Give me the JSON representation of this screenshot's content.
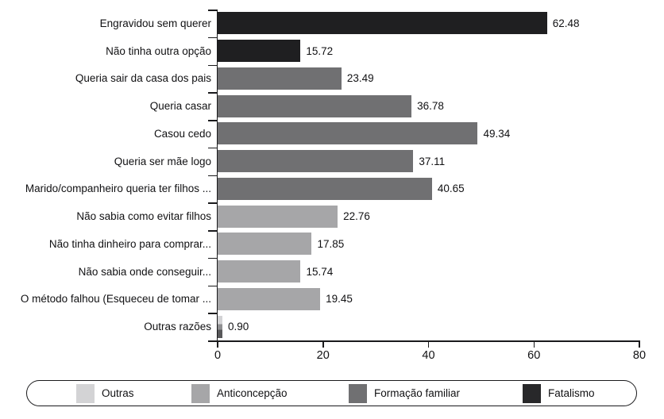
{
  "chart_data": {
    "type": "bar",
    "orientation": "horizontal",
    "title": "",
    "xlabel": "",
    "ylabel": "",
    "xlim": [
      0,
      80
    ],
    "x_ticks": [
      "0",
      "20",
      "40",
      "60",
      "80"
    ],
    "grid": false,
    "categories": [
      "Engravidou sem querer",
      "Não tinha outra opção",
      "Queria sair da casa dos pais",
      "Queria casar",
      "Casou cedo",
      "Queria ser mãe logo",
      "Marido/companheiro queria ter filhos ...",
      "Não sabia como evitar filhos",
      "Não tinha dinheiro para comprar...",
      "Não sabia onde conseguir...",
      "O método falhou (Esqueceu de tomar ...",
      "Outras razões"
    ],
    "values": [
      62.48,
      15.72,
      23.49,
      36.78,
      49.34,
      37.11,
      40.65,
      22.76,
      17.85,
      15.74,
      19.45,
      0.9
    ],
    "value_labels": [
      "62.48",
      "15.72",
      "23.49",
      "36.78",
      "49.34",
      "37.11",
      "40.65",
      "22.76",
      "17.85",
      "15.74",
      "19.45",
      "0.90"
    ],
    "groups": [
      "Fatalismo",
      "Fatalismo",
      "Formação familiar",
      "Formação familiar",
      "Formação familiar",
      "Formação familiar",
      "Formação familiar",
      "Anticoncepção",
      "Anticoncepção",
      "Anticoncepção",
      "Anticoncepção",
      "Outras"
    ],
    "colors": {
      "Outras": "#d3d3d5",
      "Anticoncepção": "#a6a6a8",
      "Formação familiar": "#707072",
      "Fatalismo": "#1f1f21"
    },
    "outras_bar_gradient": [
      "#d3d3d5",
      "#8f8f91",
      "#58585a"
    ],
    "axis_color": "#1a1a1c",
    "legend": {
      "position": "bottom",
      "entries": [
        {
          "label": "Outras",
          "color": "#d3d3d5"
        },
        {
          "label": "Anticoncepção",
          "color": "#a6a6a8"
        },
        {
          "label": "Formação familiar",
          "color": "#707072"
        },
        {
          "label": "Fatalismo",
          "color": "#28282a"
        }
      ]
    }
  }
}
